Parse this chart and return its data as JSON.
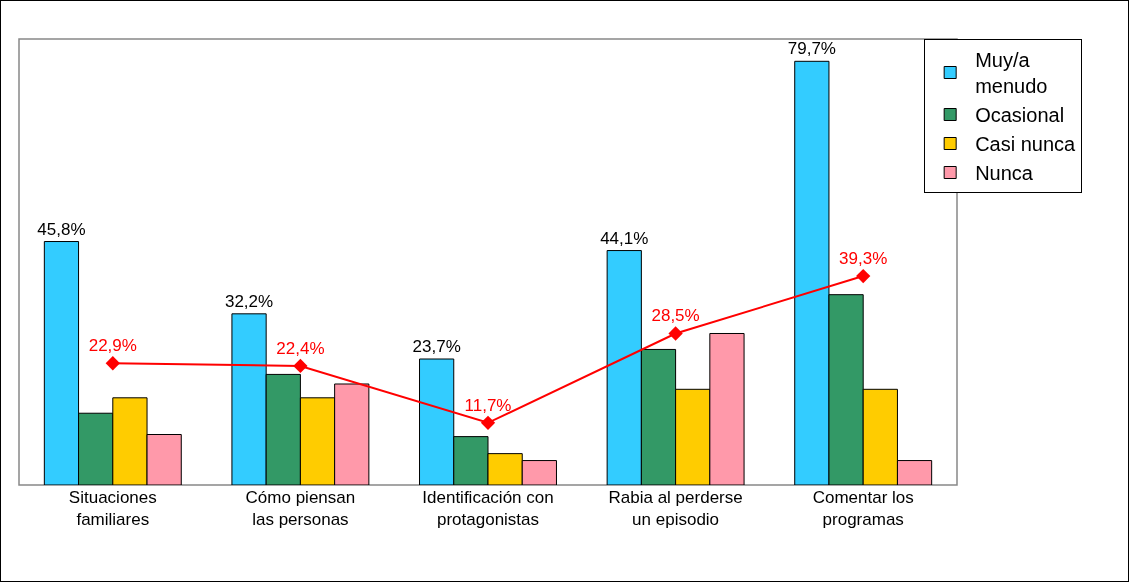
{
  "chart_data": {
    "type": "bar",
    "categories": [
      "Situaciones\nfamiliares",
      "Cómo piensan\nlas personas",
      "Identificación con\nprotagonistas",
      "Rabia al perderse\nun episodio",
      "Comentar los\nprogramas"
    ],
    "series": [
      {
        "name": "Muy/a\nmenudo",
        "color": "#33ccff",
        "values": [
          45.8,
          32.2,
          23.7,
          44.1,
          79.7
        ],
        "value_labels": [
          "45,8%",
          "32,2%",
          "23,7%",
          "44,1%",
          "79,7%"
        ]
      },
      {
        "name": "Ocasional",
        "color": "#339966",
        "values": [
          13.5,
          20.8,
          9.1,
          25.5,
          35.8
        ]
      },
      {
        "name": "Casi nunca",
        "color": "#ffcc00",
        "values": [
          16.4,
          16.4,
          5.9,
          18.0,
          18.0
        ]
      },
      {
        "name": "Nunca",
        "color": "#ff99aa",
        "values": [
          9.5,
          19.0,
          4.6,
          28.5,
          4.6
        ]
      },
      {
        "type": "line",
        "color": "#ff0000",
        "values": [
          22.9,
          22.4,
          11.7,
          28.5,
          39.3
        ],
        "value_labels": [
          "22,9%",
          "22,4%",
          "11,7%",
          "28,5%",
          "39,3%"
        ]
      }
    ],
    "legend": "top right",
    "marker": "diamond",
    "grid": false
  }
}
